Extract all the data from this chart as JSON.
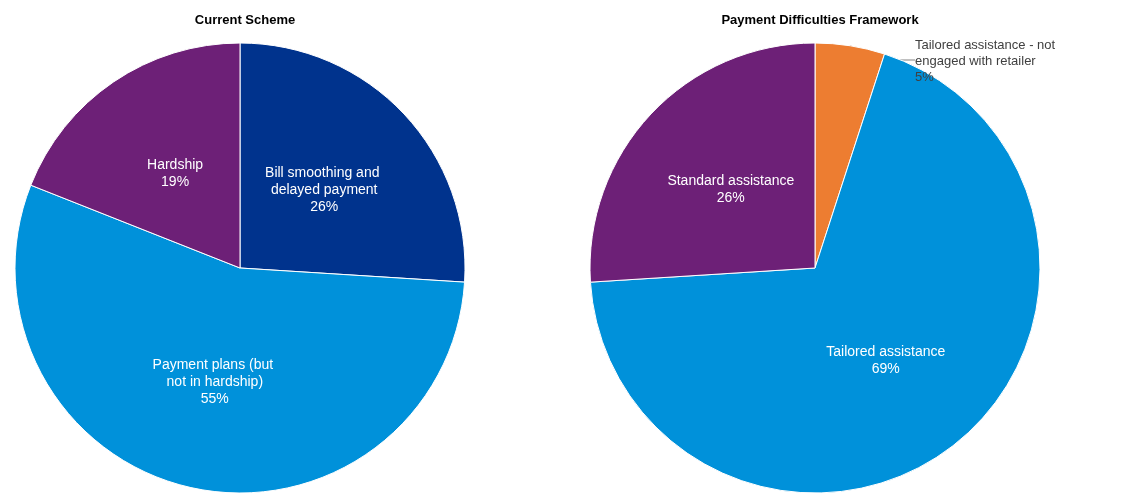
{
  "chart_data": [
    {
      "type": "pie",
      "title": "Current Scheme",
      "categories": [
        "Bill smoothing and delayed payment",
        "Payment plans (but not in hardship)",
        "Hardship"
      ],
      "values": [
        26,
        55,
        19
      ],
      "colors": [
        "#00338d",
        "#0091da",
        "#6d2077"
      ],
      "value_labels": [
        "26%",
        "55%",
        "19%"
      ]
    },
    {
      "type": "pie",
      "title": "Payment Difficulties Framework",
      "categories": [
        "Tailored assistance - not engaged with retailer",
        "Tailored assistance",
        "Standard assistance"
      ],
      "values": [
        5,
        69,
        26
      ],
      "colors": [
        "#ed7d31",
        "#0091da",
        "#6d2077"
      ],
      "value_labels": [
        "5%",
        "69%",
        "26%"
      ]
    }
  ]
}
